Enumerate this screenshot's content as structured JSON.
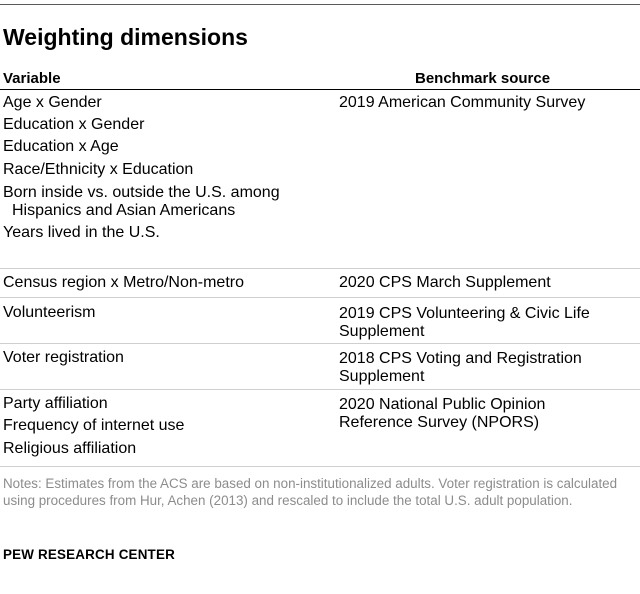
{
  "title": "Weighting dimensions",
  "headers": {
    "variable": "Variable",
    "source": "Benchmark source"
  },
  "groups": [
    {
      "variables": [
        "Age x Gender",
        "Education x Gender",
        "Education x Age",
        "Race/Ethnicity x Education",
        "Born inside vs. outside the U.S. among",
        "Hispanics and Asian Americans",
        "Years lived in the U.S."
      ],
      "source": [
        "2019 American Community Survey"
      ]
    },
    {
      "variables": [
        "Census region x Metro/Non-metro"
      ],
      "source": [
        "2020 CPS March Supplement"
      ]
    },
    {
      "variables": [
        "Volunteerism"
      ],
      "source": [
        "2019 CPS Volunteering & Civic Life",
        "Supplement"
      ]
    },
    {
      "variables": [
        "Voter registration"
      ],
      "source": [
        "2018 CPS Voting and Registration",
        "Supplement"
      ]
    },
    {
      "variables": [
        "Party affiliation",
        "Frequency of internet use",
        "Religious affiliation"
      ],
      "source": [
        "2020 National Public Opinion",
        "Reference Survey (NPORS)"
      ]
    }
  ],
  "notes": "Notes: Estimates from the ACS are based on non-institutionalized adults. Voter registration is calculated using procedures from Hur, Achen (2013) and rescaled to include the total U.S. adult population.",
  "footer": "PEW RESEARCH CENTER"
}
